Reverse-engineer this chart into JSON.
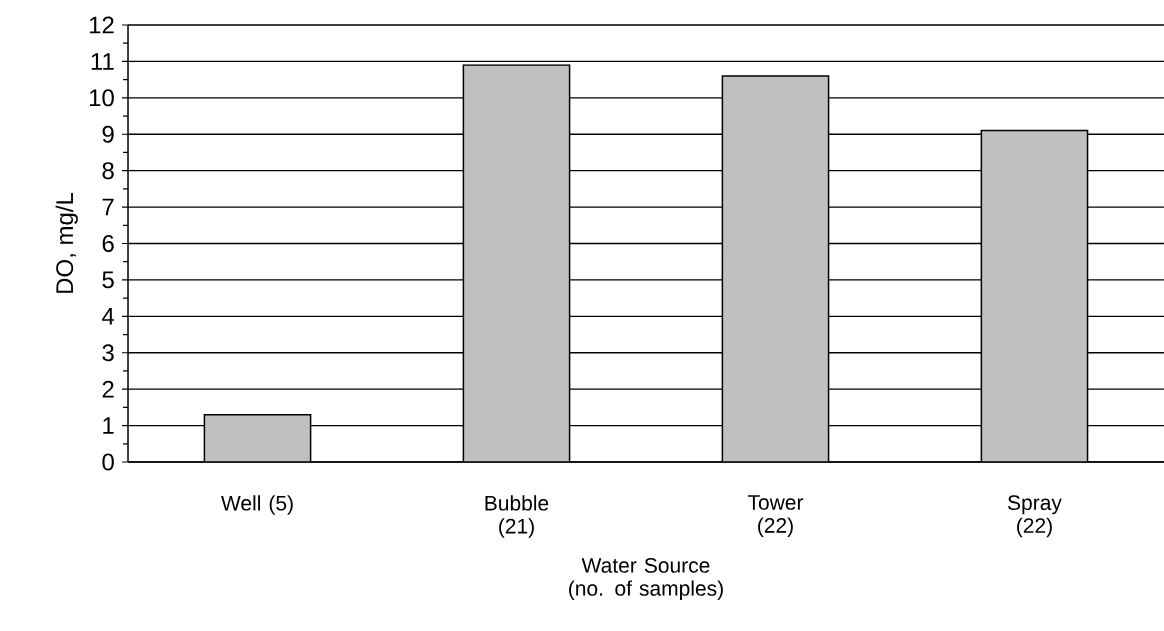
{
  "chart_data": {
    "type": "bar",
    "xlabel": "Water Source (no. of samples)",
    "ylabel": "DO, mg/L",
    "categories": [
      "Well (5)",
      "Bubble (21)",
      "Tower (22)",
      "Spray (22)"
    ],
    "values": [
      1.3,
      10.9,
      10.6,
      9.1
    ],
    "color": "#c0c0c0",
    "ylim": [
      0,
      12
    ],
    "yticks": [
      0,
      1,
      2,
      3,
      4,
      5,
      6,
      7,
      8,
      9,
      10,
      11,
      12
    ],
    "grid": "y"
  }
}
